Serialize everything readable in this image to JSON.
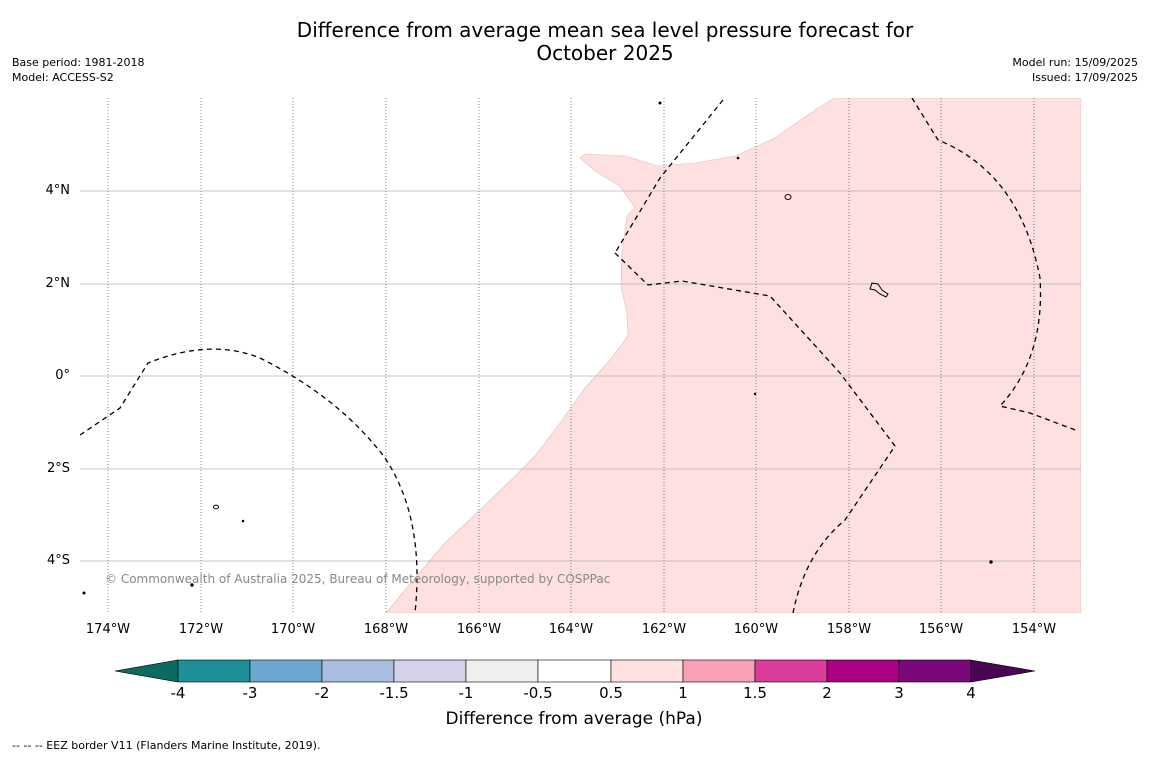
{
  "title_line1": "Difference from average mean sea level pressure forecast for",
  "title_line2": "October 2025",
  "meta_left": [
    "Base period: 1981-2018",
    "Model: ACCESS-S2"
  ],
  "meta_right": [
    "Model run: 15/09/2025",
    "Issued: 17/09/2025"
  ],
  "lat_labels": [
    "4°N",
    "2°N",
    "0°",
    "2°S",
    "4°S"
  ],
  "lon_labels": [
    "174°W",
    "172°W",
    "170°W",
    "168°W",
    "166°W",
    "164°W",
    "162°W",
    "160°W",
    "158°W",
    "156°W",
    "154°W"
  ],
  "copyright": "© Commonwealth of Australia 2025, Bureau of Meteorology, supported by COSPPac",
  "colorbar": {
    "ticks": [
      "-4",
      "-3",
      "-2",
      "-1.5",
      "-1",
      "-0.5",
      "0.5",
      "1",
      "1.5",
      "2",
      "3",
      "4"
    ],
    "colors": [
      "#0b6b5e",
      "#1e8f98",
      "#6aa8d0",
      "#a9bddf",
      "#d4d2e8",
      "#efefef",
      "#ffffff",
      "#fde0df",
      "#f9a0b6",
      "#dc3c9c",
      "#ad0082",
      "#7b087b",
      "#4a0454"
    ],
    "label": "Difference from average (hPa)"
  },
  "map_colors": {
    "positive_anomaly": "#fde0df",
    "grid": "#b5b5b5",
    "eez_line": "#000000"
  },
  "footnote": "--  --  -- EEZ border V11 (Flanders Marine Institute, 2019)."
}
